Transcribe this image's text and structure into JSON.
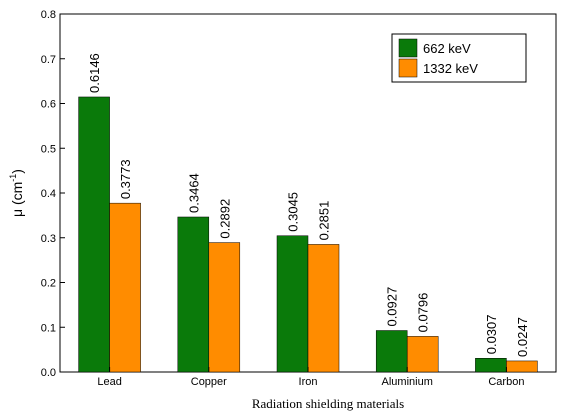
{
  "chart_data": {
    "type": "bar",
    "categories": [
      "Lead",
      "Copper",
      "Iron",
      "Aluminium",
      "Carbon"
    ],
    "series": [
      {
        "name": "662 keV",
        "color": "#0a7a0a",
        "values": [
          0.6146,
          0.3464,
          0.3045,
          0.0927,
          0.0307
        ],
        "labels": [
          "0.6146",
          "0.3464",
          "0.3045",
          "0.0927",
          "0.0307"
        ]
      },
      {
        "name": "1332 keV",
        "color": "#ff8c00",
        "values": [
          0.3773,
          0.2892,
          0.2851,
          0.0796,
          0.0247
        ],
        "labels": [
          "0.3773",
          "0.2892",
          "0.2851",
          "0.0796",
          "0.0247"
        ]
      }
    ],
    "title": "",
    "xlabel": "Radiation shielding materials",
    "ylabel_main": "μ (cm",
    "ylabel_sup": "-1",
    "ylabel_close": ")",
    "ylim": [
      0,
      0.8
    ],
    "yticks": [
      "0.0",
      "0.1",
      "0.2",
      "0.3",
      "0.4",
      "0.5",
      "0.6",
      "0.7",
      "0.8"
    ],
    "grid": false,
    "legend_position": "top-right"
  }
}
